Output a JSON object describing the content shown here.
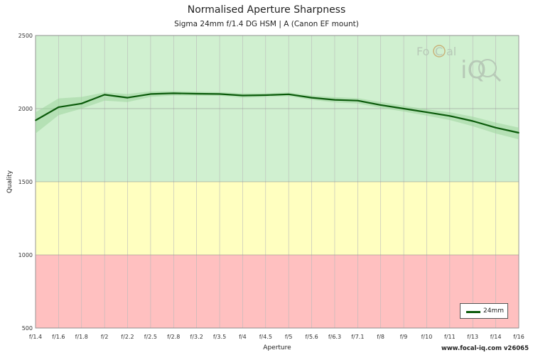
{
  "header": {
    "title": "Normalised Aperture Sharpness",
    "subtitle": "Sigma 24mm f/1.4 DG HSM | A (Canon EF mount)"
  },
  "footer": {
    "text": "www.focal-iq.com  v26065"
  },
  "watermark": {
    "text_fo": "Fo",
    "text_c": "C",
    "text_al": "al",
    "text_iq": "iQ"
  },
  "colors": {
    "good_band": "#d0f0d0",
    "mid_band": "#ffffc0",
    "bad_band": "#ffc0c0",
    "line": "#0a5a0a",
    "spread": "#9fd69f"
  },
  "chart_data": {
    "type": "line",
    "title": "Normalised Aperture Sharpness",
    "subtitle": "Sigma 24mm f/1.4 DG HSM | A (Canon EF mount)",
    "xlabel": "Aperture",
    "ylabel": "Quality",
    "categories": [
      "f/1.4",
      "f/1.6",
      "f/1.8",
      "f/2",
      "f/2.2",
      "f/2.5",
      "f/2.8",
      "f/3.2",
      "f/3.5",
      "f/4",
      "f/4.5",
      "f/5",
      "f/5.6",
      "f/6.3",
      "f/7.1",
      "f/8",
      "f/9",
      "f/10",
      "f/11",
      "f/13",
      "f/14",
      "f/16"
    ],
    "ylim": [
      500,
      2500
    ],
    "yticks": [
      500,
      1000,
      1500,
      2000,
      2500
    ],
    "grid": true,
    "bands": [
      {
        "from": 1500,
        "to": 2500,
        "color": "good"
      },
      {
        "from": 1000,
        "to": 1500,
        "color": "mid"
      },
      {
        "from": 500,
        "to": 1000,
        "color": "bad"
      }
    ],
    "series": [
      {
        "name": "24mm",
        "values": [
          1920,
          2010,
          2035,
          2095,
          2075,
          2100,
          2105,
          2102,
          2100,
          2090,
          2092,
          2098,
          2075,
          2060,
          2055,
          2025,
          2000,
          1975,
          1950,
          1915,
          1870,
          1835
        ],
        "upper": [
          1975,
          2070,
          2080,
          2110,
          2100,
          2118,
          2120,
          2115,
          2112,
          2105,
          2105,
          2110,
          2090,
          2078,
          2072,
          2045,
          2020,
          1995,
          1975,
          1945,
          1905,
          1870
        ],
        "lower": [
          1830,
          1955,
          2000,
          2055,
          2045,
          2080,
          2090,
          2088,
          2088,
          2075,
          2080,
          2085,
          2060,
          2042,
          2035,
          2005,
          1980,
          1952,
          1922,
          1880,
          1830,
          1790
        ]
      }
    ],
    "legend": "bottom-right"
  }
}
